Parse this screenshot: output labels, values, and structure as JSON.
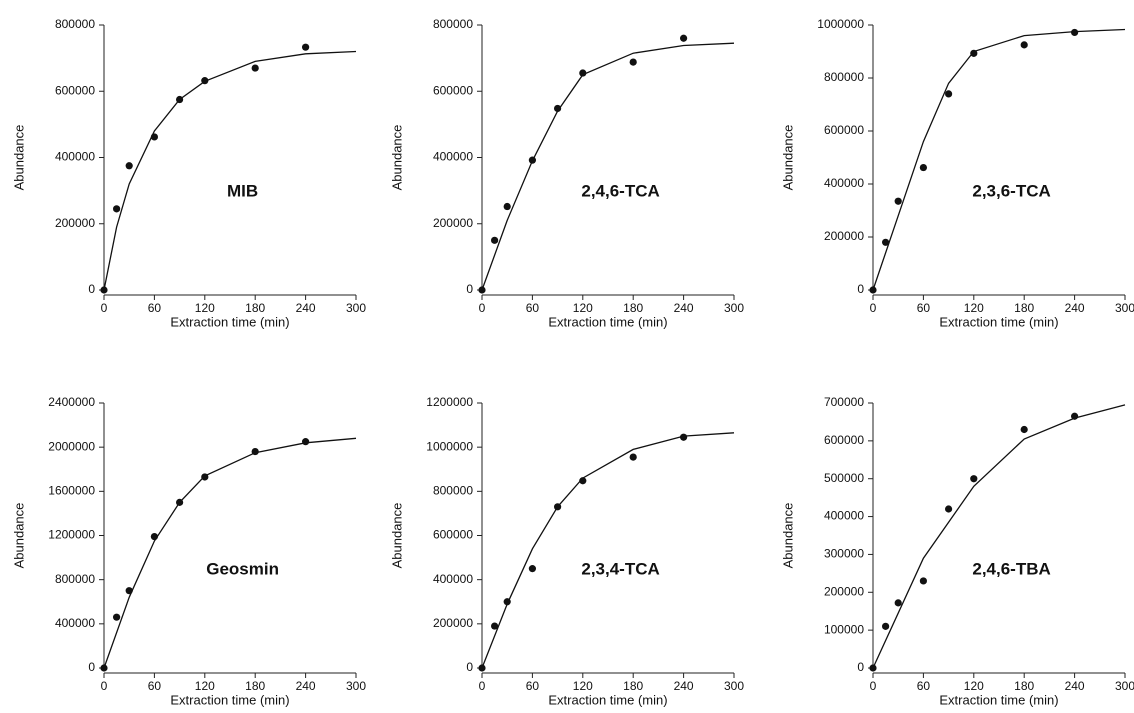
{
  "chart_data": [
    {
      "type": "scatter",
      "annotation": "MIB",
      "xlabel": "Extraction time (min)",
      "ylabel": "Abundance",
      "xlim": [
        0,
        300
      ],
      "xticks": [
        0,
        60,
        120,
        180,
        240,
        300
      ],
      "ylim": [
        0,
        800000
      ],
      "yticks": [
        0,
        200000,
        400000,
        600000,
        800000
      ],
      "color": "#111111",
      "points": {
        "x": [
          0,
          15,
          30,
          60,
          90,
          120,
          180,
          240
        ],
        "y": [
          0,
          245000,
          375000,
          462000,
          575000,
          632000,
          670000,
          733000
        ]
      },
      "curve": {
        "x": [
          0,
          15,
          30,
          60,
          90,
          120,
          180,
          240,
          300
        ],
        "y": [
          0,
          190000,
          320000,
          480000,
          575000,
          630000,
          690000,
          713000,
          720000
        ]
      }
    },
    {
      "type": "scatter",
      "annotation": "2,4,6-TCA",
      "xlabel": "Extraction time (min)",
      "ylabel": "Abundance",
      "xlim": [
        0,
        300
      ],
      "xticks": [
        0,
        60,
        120,
        180,
        240,
        300
      ],
      "ylim": [
        0,
        800000
      ],
      "yticks": [
        0,
        200000,
        400000,
        600000,
        800000
      ],
      "color": "#111111",
      "points": {
        "x": [
          0,
          15,
          30,
          60,
          90,
          120,
          180,
          240
        ],
        "y": [
          0,
          150000,
          252000,
          392000,
          548000,
          655000,
          688000,
          760000
        ]
      },
      "curve": {
        "x": [
          0,
          30,
          60,
          90,
          120,
          180,
          240,
          300
        ],
        "y": [
          0,
          210000,
          390000,
          540000,
          650000,
          715000,
          738000,
          745000
        ]
      }
    },
    {
      "type": "scatter",
      "annotation": "2,3,6-TCA",
      "xlabel": "Extraction time (min)",
      "ylabel": "Abundance",
      "xlim": [
        0,
        300
      ],
      "xticks": [
        0,
        60,
        120,
        180,
        240,
        300
      ],
      "ylim": [
        0,
        1000000
      ],
      "yticks": [
        0,
        200000,
        400000,
        600000,
        800000,
        1000000
      ],
      "color": "#111111",
      "points": {
        "x": [
          0,
          15,
          30,
          60,
          90,
          120,
          180,
          240
        ],
        "y": [
          0,
          180000,
          335000,
          462000,
          740000,
          893000,
          925000,
          972000
        ]
      },
      "curve": {
        "x": [
          0,
          30,
          60,
          90,
          120,
          180,
          240,
          300
        ],
        "y": [
          0,
          280000,
          560000,
          780000,
          900000,
          960000,
          975000,
          983000
        ]
      }
    },
    {
      "type": "scatter",
      "annotation": "Geosmin",
      "xlabel": "Extraction time (min)",
      "ylabel": "Abundance",
      "xlim": [
        0,
        300
      ],
      "xticks": [
        0,
        60,
        120,
        180,
        240,
        300
      ],
      "ylim": [
        0,
        2400000
      ],
      "yticks": [
        0,
        400000,
        800000,
        1200000,
        1600000,
        2000000,
        2400000
      ],
      "color": "#111111",
      "points": {
        "x": [
          0,
          15,
          30,
          60,
          90,
          120,
          180,
          240
        ],
        "y": [
          0,
          460000,
          700000,
          1190000,
          1500000,
          1730000,
          1960000,
          2050000
        ]
      },
      "curve": {
        "x": [
          0,
          30,
          60,
          90,
          120,
          180,
          240,
          300
        ],
        "y": [
          0,
          640000,
          1150000,
          1500000,
          1740000,
          1950000,
          2040000,
          2080000
        ]
      }
    },
    {
      "type": "scatter",
      "annotation": "2,3,4-TCA",
      "xlabel": "Extraction time (min)",
      "ylabel": "Abundance",
      "xlim": [
        0,
        300
      ],
      "xticks": [
        0,
        60,
        120,
        180,
        240,
        300
      ],
      "ylim": [
        0,
        1200000
      ],
      "yticks": [
        0,
        200000,
        400000,
        600000,
        800000,
        1000000,
        1200000
      ],
      "color": "#111111",
      "points": {
        "x": [
          0,
          15,
          30,
          60,
          90,
          120,
          180,
          240
        ],
        "y": [
          0,
          190000,
          300000,
          450000,
          730000,
          848000,
          955000,
          1045000
        ]
      },
      "curve": {
        "x": [
          0,
          30,
          60,
          90,
          120,
          180,
          240,
          300
        ],
        "y": [
          0,
          290000,
          540000,
          730000,
          860000,
          990000,
          1050000,
          1065000
        ]
      }
    },
    {
      "type": "scatter",
      "annotation": "2,4,6-TBA",
      "xlabel": "Extraction time (min)",
      "ylabel": "Abundance",
      "xlim": [
        0,
        300
      ],
      "xticks": [
        0,
        60,
        120,
        180,
        240,
        300
      ],
      "ylim": [
        0,
        700000
      ],
      "yticks": [
        0,
        100000,
        200000,
        300000,
        400000,
        500000,
        600000,
        700000
      ],
      "color": "#111111",
      "points": {
        "x": [
          0,
          15,
          30,
          60,
          90,
          120,
          180,
          240
        ],
        "y": [
          0,
          110000,
          172000,
          230000,
          420000,
          500000,
          630000,
          665000
        ]
      },
      "curve": {
        "x": [
          0,
          60,
          120,
          180,
          240,
          300
        ],
        "y": [
          0,
          290000,
          480000,
          605000,
          660000,
          695000
        ]
      }
    }
  ]
}
